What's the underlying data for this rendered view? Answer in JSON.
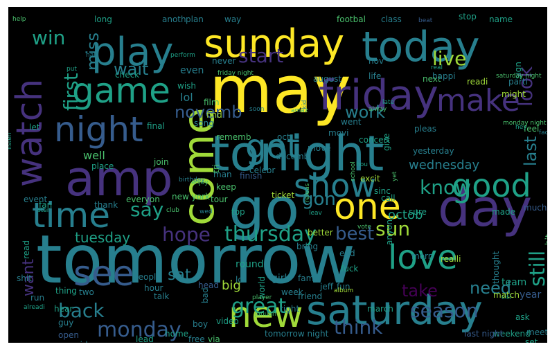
{
  "word_cloud": {
    "background": "#000000",
    "colormap": "viridis",
    "words": [
      {
        "text": "tomorrow",
        "weight": 1.0
      },
      {
        "text": "may",
        "weight": 0.82
      },
      {
        "text": "tonight",
        "weight": 0.8
      },
      {
        "text": "day",
        "weight": 0.7
      },
      {
        "text": "sunday",
        "weight": 0.62
      },
      {
        "text": "today",
        "weight": 0.64
      },
      {
        "text": "go",
        "weight": 0.66
      },
      {
        "text": "amp",
        "weight": 0.6
      },
      {
        "text": "saturday",
        "weight": 0.58
      },
      {
        "text": "come",
        "weight": 0.56
      },
      {
        "text": "play",
        "weight": 0.56
      },
      {
        "text": "friday",
        "weight": 0.54
      },
      {
        "text": "watch",
        "weight": 0.52
      },
      {
        "text": "game",
        "weight": 0.5
      },
      {
        "text": "night",
        "weight": 0.48
      },
      {
        "text": "one",
        "weight": 0.46
      },
      {
        "text": "new",
        "weight": 0.46
      },
      {
        "text": "time",
        "weight": 0.44
      },
      {
        "text": "see",
        "weight": 0.44
      },
      {
        "text": "got",
        "weight": 0.42
      },
      {
        "text": "show",
        "weight": 0.42
      },
      {
        "text": "good",
        "weight": 0.42
      },
      {
        "text": "love",
        "weight": 0.42
      },
      {
        "text": "make",
        "weight": 0.4
      },
      {
        "text": "monday",
        "weight": 0.3
      },
      {
        "text": "thursday",
        "weight": 0.28
      },
      {
        "text": "great",
        "weight": 0.28
      },
      {
        "text": "work",
        "weight": 0.26
      },
      {
        "text": "win",
        "weight": 0.26
      },
      {
        "text": "look",
        "weight": 0.26
      },
      {
        "text": "think",
        "weight": 0.26
      },
      {
        "text": "season",
        "weight": 0.26
      },
      {
        "text": "start",
        "weight": 0.24
      },
      {
        "text": "hope",
        "weight": 0.24
      },
      {
        "text": "back",
        "weight": 0.24
      },
      {
        "text": "still",
        "weight": 0.24
      },
      {
        "text": "know",
        "weight": 0.24
      },
      {
        "text": "best",
        "weight": 0.24
      },
      {
        "text": "first",
        "weight": 0.24
      },
      {
        "text": "say",
        "weight": 0.22
      },
      {
        "text": "novemb",
        "weight": 0.22
      },
      {
        "text": "want",
        "weight": 0.22
      },
      {
        "text": "need",
        "weight": 0.22
      },
      {
        "text": "take",
        "weight": 0.22
      },
      {
        "text": "sun",
        "weight": 0.22
      },
      {
        "text": "gon",
        "weight": 0.22
      },
      {
        "text": "live",
        "weight": 0.22
      },
      {
        "text": "miss",
        "weight": 0.22
      },
      {
        "text": "last",
        "weight": 0.22
      },
      {
        "text": "wait",
        "weight": 0.2
      },
      {
        "text": "tuesday",
        "weight": 0.2
      },
      {
        "text": "sat",
        "weight": 0.2
      },
      {
        "text": "octob",
        "weight": 0.16
      },
      {
        "text": "wednesday",
        "weight": 0.16
      },
      {
        "text": "well",
        "weight": 0.15
      },
      {
        "text": "lol",
        "weight": 0.15
      },
      {
        "text": "even",
        "weight": 0.15
      },
      {
        "text": "year",
        "weight": 0.15
      },
      {
        "text": "big",
        "weight": 0.15
      },
      {
        "text": "team",
        "weight": 0.15
      },
      {
        "text": "next",
        "weight": 0.14
      },
      {
        "text": "might",
        "weight": 0.14
      },
      {
        "text": "feel",
        "weight": 0.14
      },
      {
        "text": "much",
        "weight": 0.14
      },
      {
        "text": "made",
        "weight": 0.14
      },
      {
        "text": "round",
        "weight": 0.14
      },
      {
        "text": "girl",
        "weight": 0.14
      },
      {
        "text": "lot",
        "weight": 0.14
      },
      {
        "text": "talk",
        "weight": 0.14
      },
      {
        "text": "two",
        "weight": 0.14
      },
      {
        "text": "thing",
        "weight": 0.14
      },
      {
        "text": "hour",
        "weight": 0.14
      },
      {
        "text": "peopl",
        "weight": 0.14
      },
      {
        "text": "tour",
        "weight": 0.14
      },
      {
        "text": "top",
        "weight": 0.14
      },
      {
        "text": "keep",
        "weight": 0.14
      },
      {
        "text": "man",
        "weight": 0.14
      },
      {
        "text": "finish",
        "weight": 0.14
      },
      {
        "text": "celebr",
        "weight": 0.14
      },
      {
        "text": "ticket",
        "weight": 0.14
      },
      {
        "text": "excit",
        "weight": 0.14
      },
      {
        "text": "everyon",
        "weight": 0.14
      },
      {
        "text": "thank",
        "weight": 0.14
      },
      {
        "text": "fan",
        "weight": 0.14
      },
      {
        "text": "event",
        "weight": 0.14
      },
      {
        "text": "bring",
        "weight": 0.14
      },
      {
        "text": "better",
        "weight": 0.14
      },
      {
        "text": "sinc",
        "weight": 0.14
      },
      {
        "text": "sure",
        "weight": 0.14
      },
      {
        "text": "fuck",
        "weight": 0.14
      },
      {
        "text": "end",
        "weight": 0.14
      },
      {
        "text": "morn",
        "weight": 0.14
      },
      {
        "text": "realli",
        "weight": 0.14
      },
      {
        "text": "thought",
        "weight": 0.14
      },
      {
        "text": "match",
        "weight": 0.14
      },
      {
        "text": "ask",
        "weight": 0.14
      },
      {
        "text": "meet",
        "weight": 0.14
      },
      {
        "text": "weekend",
        "weight": 0.14
      },
      {
        "text": "set",
        "weight": 0.14
      },
      {
        "text": "last night",
        "weight": 0.14
      },
      {
        "text": "tomorrow night",
        "weight": 0.14
      },
      {
        "text": "march",
        "weight": 0.14
      },
      {
        "text": "friend",
        "weight": 0.14
      },
      {
        "text": "fun",
        "weight": 0.14
      },
      {
        "text": "week",
        "weight": 0.14
      },
      {
        "text": "jeff",
        "weight": 0.14
      },
      {
        "text": "world",
        "weight": 0.14
      },
      {
        "text": "right",
        "weight": 0.14
      },
      {
        "text": "via",
        "weight": 0.14
      },
      {
        "text": "free",
        "weight": 0.14
      },
      {
        "text": "home",
        "weight": 0.14
      },
      {
        "text": "lead",
        "weight": 0.14
      },
      {
        "text": "video",
        "weight": 0.14
      },
      {
        "text": "boy",
        "weight": 0.14
      },
      {
        "text": "said",
        "weight": 0.14
      },
      {
        "text": "guy",
        "weight": 0.14
      },
      {
        "text": "open",
        "weight": 0.14
      },
      {
        "text": "hear",
        "weight": 0.14
      },
      {
        "text": "run",
        "weight": 0.14
      },
      {
        "text": "shit",
        "weight": 0.14
      },
      {
        "text": "read",
        "weight": 0.14
      },
      {
        "text": "head",
        "weight": 0.14
      },
      {
        "text": "bad",
        "weight": 0.14
      },
      {
        "text": "famili",
        "weight": 0.14
      },
      {
        "text": "alreadi",
        "weight": 0.14
      },
      {
        "text": "player",
        "weight": 0.1
      },
      {
        "text": "januari",
        "weight": 0.1
      },
      {
        "text": "album",
        "weight": 0.1
      },
      {
        "text": "citi",
        "weight": 0.1
      },
      {
        "text": "hit",
        "weight": 0.1
      },
      {
        "text": "call",
        "weight": 0.1
      },
      {
        "text": "anyon",
        "weight": 0.14
      },
      {
        "text": "vote",
        "weight": 0.1
      },
      {
        "text": "releas",
        "weight": 0.1
      },
      {
        "text": "new york",
        "weight": 0.1
      },
      {
        "text": "tri",
        "weight": 0.14
      },
      {
        "text": "join",
        "weight": 0.14
      },
      {
        "text": "place",
        "weight": 0.14
      },
      {
        "text": "rememb",
        "weight": 0.14
      },
      {
        "text": "decemb",
        "weight": 0.14
      },
      {
        "text": "oct",
        "weight": 0.14
      },
      {
        "text": "move",
        "weight": 0.14
      },
      {
        "text": "concert",
        "weight": 0.14
      },
      {
        "text": "movi",
        "weight": 0.14
      },
      {
        "text": "went",
        "weight": 0.14
      },
      {
        "text": "give",
        "weight": 0.14
      },
      {
        "text": "pleas",
        "weight": 0.14
      },
      {
        "text": "yesterday",
        "weight": 0.14
      },
      {
        "text": "song",
        "weight": 0.14
      },
      {
        "text": "find",
        "weight": 0.14
      },
      {
        "text": "final",
        "weight": 0.14
      },
      {
        "text": "film",
        "weight": 0.14
      },
      {
        "text": "let",
        "weight": 0.14
      },
      {
        "text": "wish",
        "weight": 0.14
      },
      {
        "text": "never",
        "weight": 0.14
      },
      {
        "text": "august",
        "weight": 0.14
      },
      {
        "text": "check",
        "weight": 0.14
      },
      {
        "text": "nov",
        "weight": 0.14
      },
      {
        "text": "life",
        "weight": 0.14
      },
      {
        "text": "happi",
        "weight": 0.14
      },
      {
        "text": "readi",
        "weight": 0.14
      },
      {
        "text": "parti",
        "weight": 0.14
      },
      {
        "text": "sign",
        "weight": 0.14
      },
      {
        "text": "long",
        "weight": 0.14
      },
      {
        "text": "anoth",
        "weight": 0.14
      },
      {
        "text": "plan",
        "weight": 0.14
      },
      {
        "text": "way",
        "weight": 0.14
      },
      {
        "text": "footbal",
        "weight": 0.14
      },
      {
        "text": "class",
        "weight": 0.14
      },
      {
        "text": "beat",
        "weight": 0.14
      },
      {
        "text": "stop",
        "weight": 0.1
      },
      {
        "text": "name",
        "weight": 0.14
      },
      {
        "text": "perform",
        "weight": 0.14
      },
      {
        "text": "half",
        "weight": 0.1
      },
      {
        "text": "real",
        "weight": 0.1
      },
      {
        "text": "put",
        "weight": 0.1
      },
      {
        "text": "friday night",
        "weight": 0.1
      },
      {
        "text": "saturday night",
        "weight": 0.1
      },
      {
        "text": "help",
        "weight": 0.1
      },
      {
        "text": "alway",
        "weight": 0.1
      },
      {
        "text": "kid",
        "weight": 0.1
      },
      {
        "text": "birthday",
        "weight": 0.1
      },
      {
        "text": "listen",
        "weight": 0.1
      },
      {
        "text": "enjoy",
        "weight": 0.1
      },
      {
        "text": "late",
        "weight": 0.1
      },
      {
        "text": "soon",
        "weight": 0.1
      },
      {
        "text": "amaz",
        "weight": 0.1
      },
      {
        "text": "monday night",
        "weight": 0.1
      },
      {
        "text": "hey",
        "weight": 0.1
      },
      {
        "text": "face",
        "weight": 0.1
      },
      {
        "text": "hou",
        "weight": 0.1
      },
      {
        "text": "school",
        "weight": 0.1
      },
      {
        "text": "yet",
        "weight": 0.1
      },
      {
        "text": "leav",
        "weight": 0.1
      },
      {
        "text": "club",
        "weight": 0.1
      },
      {
        "text": "star",
        "weight": 0.1
      },
      {
        "text": "wed",
        "weight": 0.1
      },
      {
        "text": "ye",
        "weight": 0.1
      }
    ]
  }
}
